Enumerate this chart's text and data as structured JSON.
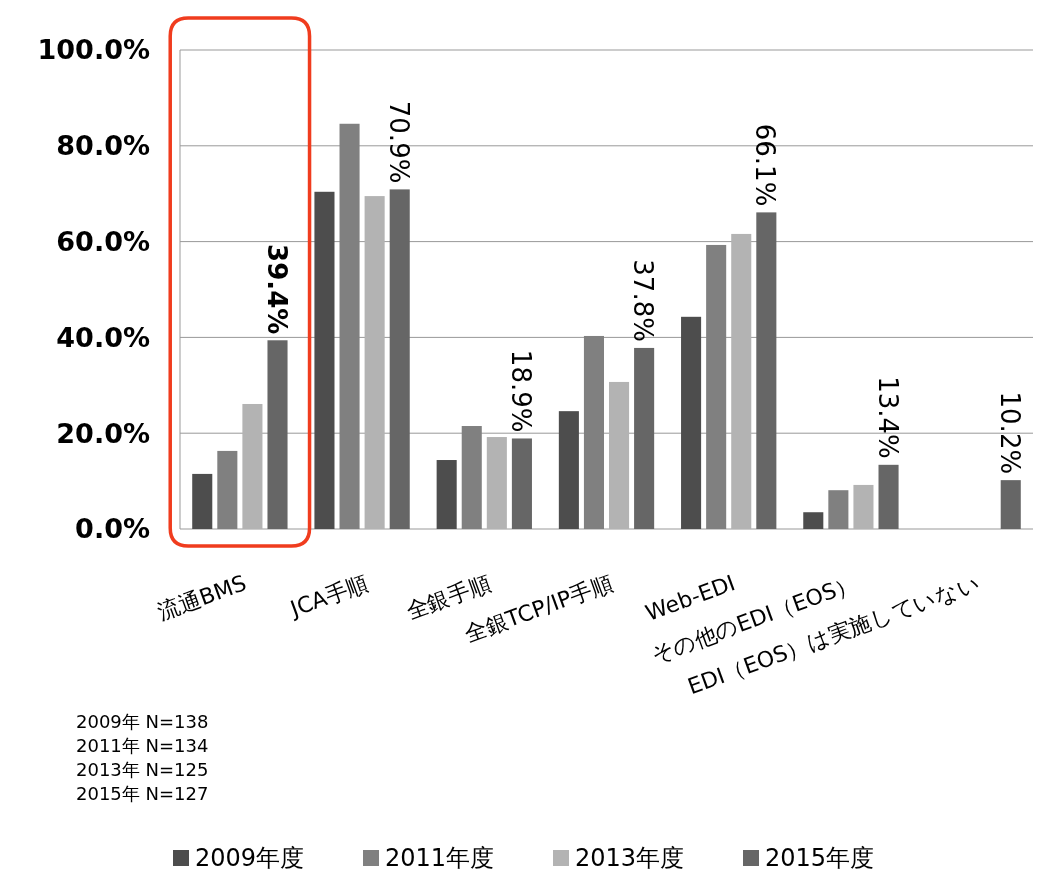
{
  "chart_data": {
    "type": "bar",
    "categories": [
      "流通BMS",
      "JCA手順",
      "全銀手順",
      "全銀TCP/IP手順",
      "Web-EDI",
      "その他のEDI（EOS）",
      "EDI（EOS）は実施していない"
    ],
    "series": [
      {
        "name": "2009年度",
        "color": "#4d4d4d",
        "values": [
          11.5,
          70.4,
          14.4,
          24.6,
          44.3,
          3.5,
          null
        ]
      },
      {
        "name": "2011年度",
        "color": "#808080",
        "values": [
          16.3,
          84.6,
          21.5,
          40.3,
          59.3,
          8.1,
          null
        ]
      },
      {
        "name": "2013年度",
        "color": "#b3b3b3",
        "values": [
          26.1,
          69.5,
          19.2,
          30.7,
          61.6,
          9.2,
          null
        ]
      },
      {
        "name": "2015年度",
        "color": "#666666",
        "values": [
          39.4,
          70.9,
          18.9,
          37.8,
          66.1,
          13.4,
          10.2
        ],
        "value_labels": [
          "39.4%",
          "70.9%",
          "18.9%",
          "37.8%",
          "66.1%",
          "13.4%",
          "10.2%"
        ]
      }
    ],
    "ylim": [
      0,
      100
    ],
    "yticks": [
      {
        "value": 0,
        "label": "0.0%"
      },
      {
        "value": 20,
        "label": "20.0%"
      },
      {
        "value": 40,
        "label": "40.0%"
      },
      {
        "value": 60,
        "label": "60.0%"
      },
      {
        "value": 80,
        "label": "80.0%"
      },
      {
        "value": 100,
        "label": "100.0%"
      }
    ],
    "grid": "y",
    "legend": "bottom",
    "annotations": [
      "2009年  N=138",
      "2011年  N=134",
      "2013年  N=125",
      "2015年  N=127"
    ]
  }
}
